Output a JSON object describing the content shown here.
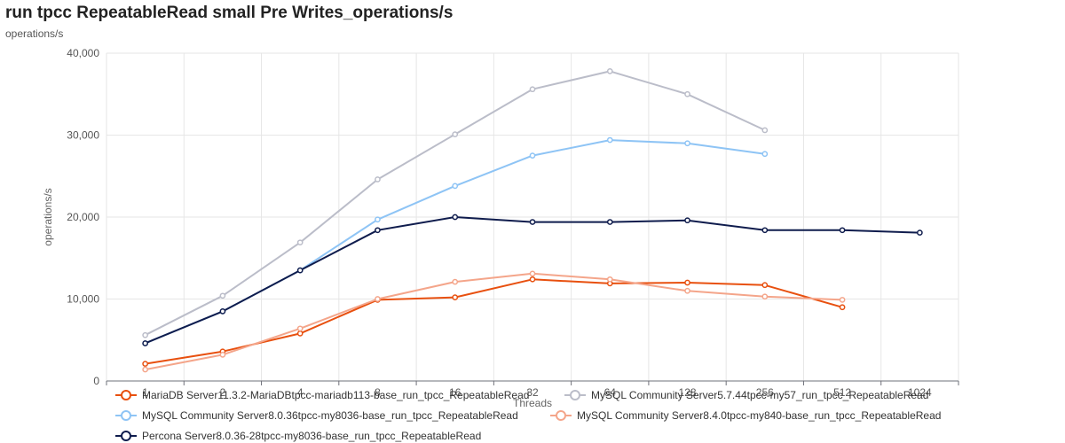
{
  "chart_data": {
    "type": "line",
    "title": "run tpcc RepeatableRead small Pre Writes_operations/s",
    "subtitle": "operations/s",
    "xlabel": "Threads",
    "ylabel": "operations/s",
    "categories": [
      "1",
      "2",
      "4",
      "8",
      "16",
      "32",
      "64",
      "128",
      "256",
      "512",
      "1024"
    ],
    "ylim": [
      0,
      40000
    ],
    "yticks": [
      0,
      10000,
      20000,
      30000,
      40000
    ],
    "ytick_labels": [
      "0",
      "10,000",
      "20,000",
      "30,000",
      "40,000"
    ],
    "grid": true,
    "series": [
      {
        "name": "MariaDB Server11.3.2-MariaDBtpcc-mariadb113-base_run_tpcc_RepeatableRead",
        "color": "#e8500f",
        "values": [
          2100,
          3600,
          5800,
          9900,
          10200,
          12400,
          11900,
          12000,
          11700,
          9000,
          null
        ]
      },
      {
        "name": "MySQL Community Server5.7.44tpcc-my57_run_tpcc_RepeatableRead",
        "color": "#bbbdc9",
        "values": [
          5600,
          10400,
          16900,
          24600,
          30100,
          35600,
          37800,
          35000,
          30600,
          null,
          null
        ]
      },
      {
        "name": "MySQL Community Server8.0.36tpcc-my8036-base_run_tpcc_RepeatableRead",
        "color": "#8ec4f5",
        "values": [
          4600,
          8500,
          13500,
          19700,
          23800,
          27500,
          29400,
          29000,
          27700,
          null,
          null
        ]
      },
      {
        "name": "MySQL Community Server8.4.0tpcc-my840-base_run_tpcc_RepeatableRead",
        "color": "#f4a58a",
        "values": [
          1400,
          3200,
          6400,
          10000,
          12100,
          13100,
          12400,
          11000,
          10300,
          9900,
          null
        ]
      },
      {
        "name": "Percona Server8.0.36-28tpcc-my8036-base_run_tpcc_RepeatableRead",
        "color": "#0f1c4d",
        "values": [
          4600,
          8500,
          13500,
          18400,
          20000,
          19400,
          19400,
          19600,
          18400,
          18400,
          18100
        ]
      }
    ]
  }
}
